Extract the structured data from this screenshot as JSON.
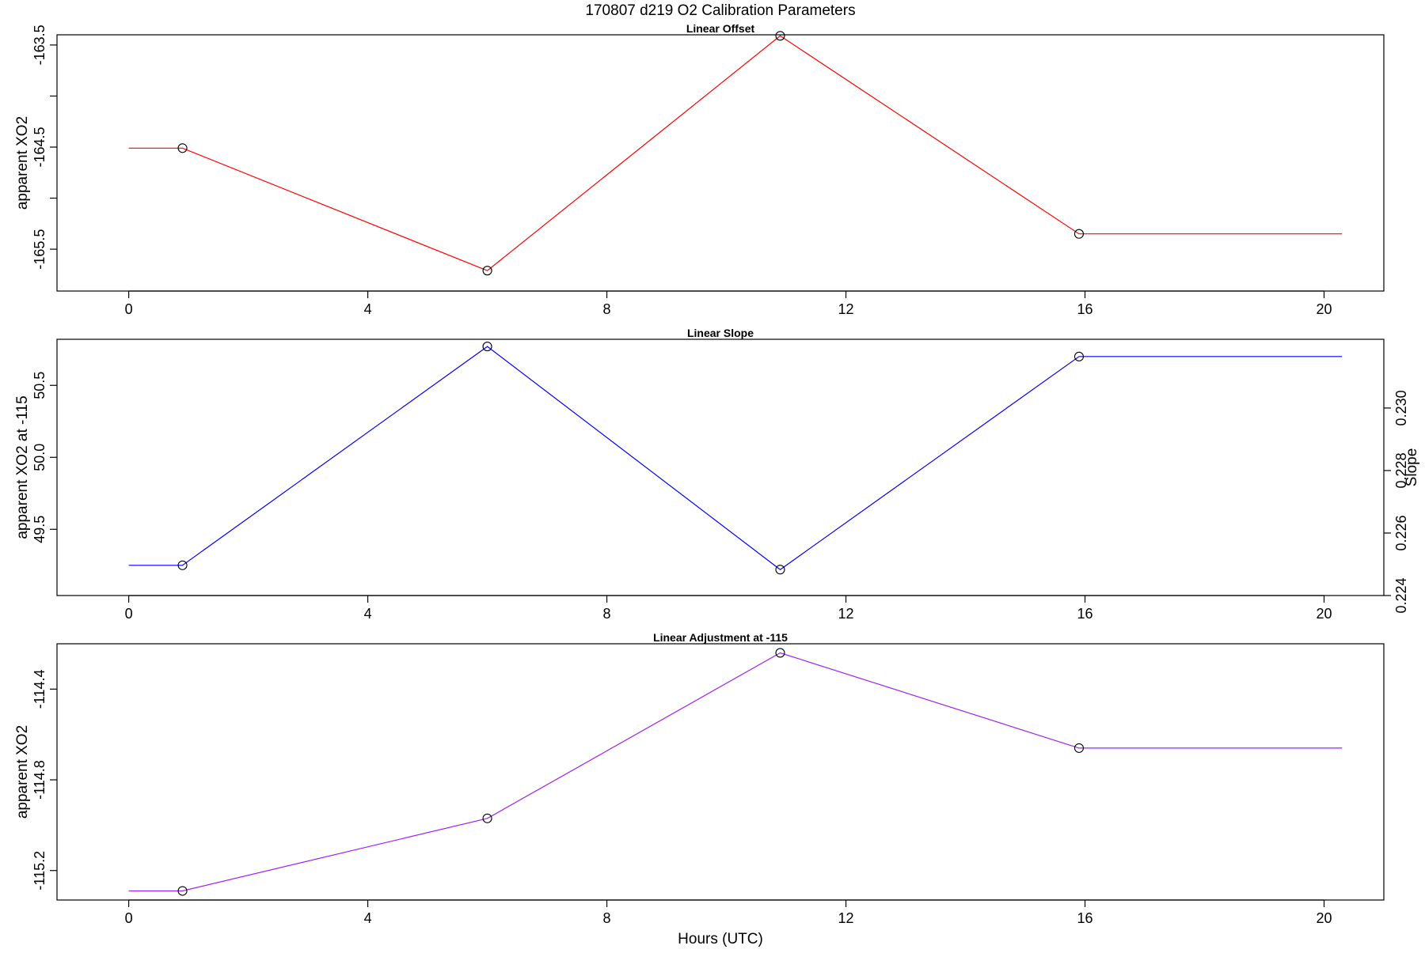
{
  "figure": {
    "title": "170807   d219   O2 Calibration Parameters",
    "xlabel": "Hours (UTC)"
  },
  "chart_data": [
    {
      "type": "line",
      "title": "Linear Offset",
      "xlabel": "",
      "ylabel": "apparent XO2",
      "color": "#ff0000",
      "xlim": [
        -1.2,
        21.0
      ],
      "ylim": [
        -165.91,
        -163.4
      ],
      "x_ticks": [
        0,
        4,
        8,
        12,
        16,
        20
      ],
      "y_ticks": [
        -163.5,
        -164.0,
        -164.5,
        -165.0,
        -165.5
      ],
      "y_tick_labels": [
        "-163.5",
        "",
        "-164.5",
        "",
        "-165.5"
      ],
      "line_x": [
        0.0,
        0.9,
        6.0,
        10.9,
        15.9,
        20.3
      ],
      "line_y": [
        -164.51,
        -164.51,
        -165.71,
        -163.41,
        -165.35,
        -165.35
      ],
      "points": [
        {
          "x": 0.9,
          "y": -164.51
        },
        {
          "x": 6.0,
          "y": -165.71
        },
        {
          "x": 10.9,
          "y": -163.41
        },
        {
          "x": 15.9,
          "y": -165.35
        }
      ]
    },
    {
      "type": "line",
      "title": "Linear Slope",
      "xlabel": "",
      "ylabel": "apparent XO2 at -115",
      "ylabel_right": "Slope",
      "color": "#0000ff",
      "xlim": [
        -1.2,
        21.0
      ],
      "ylim": [
        49.04,
        50.82
      ],
      "x_ticks": [
        0,
        4,
        8,
        12,
        16,
        20
      ],
      "y_ticks": [
        49.5,
        50.0,
        50.5
      ],
      "y_tick_labels": [
        "49.5",
        "50.0",
        "50.5"
      ],
      "y2lim": [
        0.224,
        0.2322
      ],
      "y2_ticks": [
        0.224,
        0.226,
        0.228,
        0.23
      ],
      "y2_tick_labels": [
        "0.224",
        "0.226",
        "0.228",
        "0.230"
      ],
      "line_x": [
        0.0,
        0.9,
        6.0,
        10.9,
        15.9,
        20.3
      ],
      "line_y": [
        49.25,
        49.25,
        50.77,
        49.22,
        50.7,
        50.7
      ],
      "points": [
        {
          "x": 0.9,
          "y": 49.25
        },
        {
          "x": 6.0,
          "y": 50.77
        },
        {
          "x": 10.9,
          "y": 49.22
        },
        {
          "x": 15.9,
          "y": 50.7
        }
      ]
    },
    {
      "type": "line",
      "title": "Linear Adjustment at -115",
      "xlabel": "Hours (UTC)",
      "ylabel": "apparent XO2",
      "color": "#a020f0",
      "xlim": [
        -1.2,
        21.0
      ],
      "ylim": [
        -115.33,
        -114.2
      ],
      "x_ticks": [
        0,
        4,
        8,
        12,
        16,
        20
      ],
      "y_ticks": [
        -114.4,
        -114.8,
        -115.2
      ],
      "y_tick_labels": [
        "-114.4",
        "-114.8",
        "-115.2"
      ],
      "line_x": [
        0.0,
        0.9,
        6.0,
        10.9,
        15.9,
        20.3
      ],
      "line_y": [
        -115.29,
        -115.29,
        -114.97,
        -114.24,
        -114.66,
        -114.66
      ],
      "points": [
        {
          "x": 0.9,
          "y": -115.29
        },
        {
          "x": 6.0,
          "y": -114.97
        },
        {
          "x": 10.9,
          "y": -114.24
        },
        {
          "x": 15.9,
          "y": -114.66
        }
      ]
    }
  ]
}
